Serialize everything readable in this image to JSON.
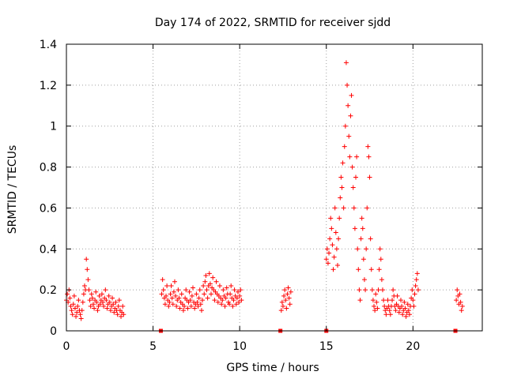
{
  "chart_data": {
    "type": "scatter",
    "title": "Day 174 of 2022, SRMTID for receiver sjdd",
    "xlabel": "GPS time / hours",
    "ylabel": "SRMTID / TECUs",
    "xlim": [
      0,
      24
    ],
    "ylim": [
      0,
      1.4
    ],
    "x_ticks": [
      0,
      5,
      10,
      15,
      20
    ],
    "x_tick_labels": [
      "0",
      "5",
      "10",
      "15",
      "20"
    ],
    "y_ticks": [
      0,
      0.2,
      0.4,
      0.6,
      0.8,
      1.0,
      1.2,
      1.4
    ],
    "y_tick_labels": [
      "0",
      "0.2",
      "0.4",
      "0.6",
      "0.8",
      "1",
      "1.2",
      "1.4"
    ],
    "grid": true,
    "legend": "none",
    "marker_color": "#ff0000",
    "series": [
      {
        "name": "SRMTID",
        "marker": "plus",
        "points": [
          [
            0.0,
            0.15
          ],
          [
            0.05,
            0.18
          ],
          [
            0.1,
            0.14
          ],
          [
            0.15,
            0.2
          ],
          [
            0.2,
            0.16
          ],
          [
            0.25,
            0.12
          ],
          [
            0.3,
            0.1
          ],
          [
            0.35,
            0.08
          ],
          [
            0.4,
            0.13
          ],
          [
            0.45,
            0.17
          ],
          [
            0.5,
            0.11
          ],
          [
            0.55,
            0.07
          ],
          [
            0.6,
            0.09
          ],
          [
            0.65,
            0.12
          ],
          [
            0.7,
            0.15
          ],
          [
            0.75,
            0.1
          ],
          [
            0.8,
            0.08
          ],
          [
            0.85,
            0.06
          ],
          [
            0.9,
            0.1
          ],
          [
            0.95,
            0.14
          ],
          [
            1.0,
            0.18
          ],
          [
            1.05,
            0.22
          ],
          [
            1.1,
            0.2
          ],
          [
            1.15,
            0.35
          ],
          [
            1.2,
            0.3
          ],
          [
            1.25,
            0.25
          ],
          [
            1.3,
            0.2
          ],
          [
            1.35,
            0.15
          ],
          [
            1.4,
            0.12
          ],
          [
            1.45,
            0.18
          ],
          [
            1.5,
            0.16
          ],
          [
            1.55,
            0.13
          ],
          [
            1.6,
            0.11
          ],
          [
            1.65,
            0.15
          ],
          [
            1.7,
            0.19
          ],
          [
            1.75,
            0.14
          ],
          [
            1.8,
            0.1
          ],
          [
            1.85,
            0.12
          ],
          [
            1.9,
            0.17
          ],
          [
            1.95,
            0.13
          ],
          [
            2.0,
            0.15
          ],
          [
            2.05,
            0.18
          ],
          [
            2.1,
            0.14
          ],
          [
            2.15,
            0.12
          ],
          [
            2.2,
            0.16
          ],
          [
            2.25,
            0.2
          ],
          [
            2.3,
            0.15
          ],
          [
            2.35,
            0.11
          ],
          [
            2.4,
            0.13
          ],
          [
            2.45,
            0.17
          ],
          [
            2.5,
            0.14
          ],
          [
            2.55,
            0.1
          ],
          [
            2.6,
            0.12
          ],
          [
            2.65,
            0.16
          ],
          [
            2.7,
            0.13
          ],
          [
            2.75,
            0.09
          ],
          [
            2.8,
            0.11
          ],
          [
            2.85,
            0.14
          ],
          [
            2.9,
            0.1
          ],
          [
            2.95,
            0.08
          ],
          [
            3.0,
            0.12
          ],
          [
            3.05,
            0.15
          ],
          [
            3.1,
            0.1
          ],
          [
            3.15,
            0.07
          ],
          [
            3.2,
            0.09
          ],
          [
            3.25,
            0.12
          ],
          [
            3.3,
            0.08
          ],
          [
            5.5,
            0.18
          ],
          [
            5.55,
            0.25
          ],
          [
            5.6,
            0.2
          ],
          [
            5.65,
            0.16
          ],
          [
            5.7,
            0.13
          ],
          [
            5.75,
            0.17
          ],
          [
            5.8,
            0.22
          ],
          [
            5.85,
            0.15
          ],
          [
            5.9,
            0.12
          ],
          [
            5.95,
            0.14
          ],
          [
            6.0,
            0.18
          ],
          [
            6.05,
            0.22
          ],
          [
            6.1,
            0.16
          ],
          [
            6.15,
            0.13
          ],
          [
            6.2,
            0.19
          ],
          [
            6.25,
            0.24
          ],
          [
            6.3,
            0.17
          ],
          [
            6.35,
            0.12
          ],
          [
            6.4,
            0.15
          ],
          [
            6.45,
            0.2
          ],
          [
            6.5,
            0.16
          ],
          [
            6.55,
            0.11
          ],
          [
            6.6,
            0.14
          ],
          [
            6.65,
            0.18
          ],
          [
            6.7,
            0.13
          ],
          [
            6.75,
            0.1
          ],
          [
            6.8,
            0.12
          ],
          [
            6.85,
            0.16
          ],
          [
            6.9,
            0.2
          ],
          [
            6.95,
            0.15
          ],
          [
            7.0,
            0.11
          ],
          [
            7.05,
            0.14
          ],
          [
            7.1,
            0.19
          ],
          [
            7.15,
            0.15
          ],
          [
            7.2,
            0.12
          ],
          [
            7.25,
            0.17
          ],
          [
            7.3,
            0.21
          ],
          [
            7.35,
            0.14
          ],
          [
            7.4,
            0.11
          ],
          [
            7.45,
            0.13
          ],
          [
            7.5,
            0.18
          ],
          [
            7.55,
            0.14
          ],
          [
            7.6,
            0.12
          ],
          [
            7.65,
            0.16
          ],
          [
            7.7,
            0.2
          ],
          [
            7.75,
            0.13
          ],
          [
            7.8,
            0.1
          ],
          [
            7.85,
            0.15
          ],
          [
            7.9,
            0.22
          ],
          [
            7.95,
            0.18
          ],
          [
            8.0,
            0.24
          ],
          [
            8.05,
            0.27
          ],
          [
            8.1,
            0.2
          ],
          [
            8.15,
            0.16
          ],
          [
            8.2,
            0.22
          ],
          [
            8.25,
            0.28
          ],
          [
            8.3,
            0.23
          ],
          [
            8.35,
            0.18
          ],
          [
            8.4,
            0.21
          ],
          [
            8.45,
            0.26
          ],
          [
            8.5,
            0.2
          ],
          [
            8.55,
            0.15
          ],
          [
            8.6,
            0.19
          ],
          [
            8.65,
            0.24
          ],
          [
            8.7,
            0.18
          ],
          [
            8.75,
            0.14
          ],
          [
            8.8,
            0.17
          ],
          [
            8.85,
            0.22
          ],
          [
            8.9,
            0.16
          ],
          [
            8.95,
            0.13
          ],
          [
            9.0,
            0.15
          ],
          [
            9.05,
            0.2
          ],
          [
            9.1,
            0.17
          ],
          [
            9.15,
            0.12
          ],
          [
            9.2,
            0.16
          ],
          [
            9.25,
            0.21
          ],
          [
            9.3,
            0.18
          ],
          [
            9.35,
            0.14
          ],
          [
            9.4,
            0.13
          ],
          [
            9.45,
            0.18
          ],
          [
            9.5,
            0.22
          ],
          [
            9.55,
            0.16
          ],
          [
            9.6,
            0.12
          ],
          [
            9.65,
            0.15
          ],
          [
            9.7,
            0.2
          ],
          [
            9.75,
            0.17
          ],
          [
            9.8,
            0.13
          ],
          [
            9.85,
            0.16
          ],
          [
            9.9,
            0.19
          ],
          [
            9.95,
            0.14
          ],
          [
            10.0,
            0.17
          ],
          [
            10.05,
            0.2
          ],
          [
            10.1,
            0.15
          ],
          [
            12.4,
            0.1
          ],
          [
            12.45,
            0.14
          ],
          [
            12.5,
            0.12
          ],
          [
            12.55,
            0.17
          ],
          [
            12.6,
            0.2
          ],
          [
            12.65,
            0.15
          ],
          [
            12.7,
            0.11
          ],
          [
            12.75,
            0.18
          ],
          [
            12.8,
            0.21
          ],
          [
            12.85,
            0.16
          ],
          [
            12.9,
            0.13
          ],
          [
            12.95,
            0.19
          ],
          [
            15.0,
            0.35
          ],
          [
            15.05,
            0.4
          ],
          [
            15.1,
            0.33
          ],
          [
            15.15,
            0.38
          ],
          [
            15.2,
            0.45
          ],
          [
            15.25,
            0.55
          ],
          [
            15.3,
            0.5
          ],
          [
            15.35,
            0.42
          ],
          [
            15.4,
            0.3
          ],
          [
            15.45,
            0.36
          ],
          [
            15.5,
            0.6
          ],
          [
            15.55,
            0.48
          ],
          [
            15.6,
            0.4
          ],
          [
            15.65,
            0.32
          ],
          [
            15.7,
            0.45
          ],
          [
            15.75,
            0.55
          ],
          [
            15.8,
            0.65
          ],
          [
            15.85,
            0.75
          ],
          [
            15.9,
            0.7
          ],
          [
            15.95,
            0.82
          ],
          [
            16.0,
            0.6
          ],
          [
            16.05,
            0.9
          ],
          [
            16.1,
            1.0
          ],
          [
            16.15,
            1.31
          ],
          [
            16.2,
            1.2
          ],
          [
            16.25,
            1.1
          ],
          [
            16.3,
            0.95
          ],
          [
            16.35,
            0.85
          ],
          [
            16.4,
            1.05
          ],
          [
            16.45,
            1.15
          ],
          [
            16.5,
            0.8
          ],
          [
            16.55,
            0.7
          ],
          [
            16.6,
            0.6
          ],
          [
            16.65,
            0.5
          ],
          [
            16.7,
            0.75
          ],
          [
            16.75,
            0.85
          ],
          [
            16.8,
            0.4
          ],
          [
            16.85,
            0.3
          ],
          [
            16.9,
            0.2
          ],
          [
            16.95,
            0.15
          ],
          [
            17.0,
            0.45
          ],
          [
            17.05,
            0.55
          ],
          [
            17.1,
            0.5
          ],
          [
            17.15,
            0.35
          ],
          [
            17.2,
            0.25
          ],
          [
            17.25,
            0.2
          ],
          [
            17.3,
            0.4
          ],
          [
            17.35,
            0.6
          ],
          [
            17.4,
            0.9
          ],
          [
            17.45,
            0.85
          ],
          [
            17.5,
            0.75
          ],
          [
            17.55,
            0.45
          ],
          [
            17.6,
            0.3
          ],
          [
            17.65,
            0.2
          ],
          [
            17.7,
            0.15
          ],
          [
            17.75,
            0.12
          ],
          [
            17.8,
            0.1
          ],
          [
            17.85,
            0.18
          ],
          [
            17.9,
            0.14
          ],
          [
            17.95,
            0.11
          ],
          [
            18.0,
            0.2
          ],
          [
            18.05,
            0.3
          ],
          [
            18.1,
            0.4
          ],
          [
            18.15,
            0.35
          ],
          [
            18.2,
            0.25
          ],
          [
            18.25,
            0.2
          ],
          [
            18.3,
            0.15
          ],
          [
            18.35,
            0.12
          ],
          [
            18.4,
            0.1
          ],
          [
            18.45,
            0.08
          ],
          [
            18.5,
            0.11
          ],
          [
            18.55,
            0.15
          ],
          [
            18.6,
            0.12
          ],
          [
            18.65,
            0.1
          ],
          [
            18.7,
            0.08
          ],
          [
            18.75,
            0.12
          ],
          [
            18.8,
            0.15
          ],
          [
            18.85,
            0.2
          ],
          [
            18.9,
            0.17
          ],
          [
            18.95,
            0.12
          ],
          [
            19.0,
            0.1
          ],
          [
            19.05,
            0.13
          ],
          [
            19.1,
            0.17
          ],
          [
            19.15,
            0.12
          ],
          [
            19.2,
            0.09
          ],
          [
            19.25,
            0.11
          ],
          [
            19.3,
            0.15
          ],
          [
            19.35,
            0.12
          ],
          [
            19.4,
            0.08
          ],
          [
            19.45,
            0.1
          ],
          [
            19.5,
            0.14
          ],
          [
            19.55,
            0.11
          ],
          [
            19.6,
            0.07
          ],
          [
            19.65,
            0.09
          ],
          [
            19.7,
            0.13
          ],
          [
            19.75,
            0.1
          ],
          [
            19.8,
            0.08
          ],
          [
            19.85,
            0.12
          ],
          [
            19.9,
            0.16
          ],
          [
            19.95,
            0.2
          ],
          [
            20.0,
            0.15
          ],
          [
            20.05,
            0.12
          ],
          [
            20.1,
            0.18
          ],
          [
            20.15,
            0.22
          ],
          [
            20.2,
            0.25
          ],
          [
            20.25,
            0.28
          ],
          [
            20.3,
            0.2
          ],
          [
            22.5,
            0.15
          ],
          [
            22.55,
            0.2
          ],
          [
            22.6,
            0.17
          ],
          [
            22.65,
            0.13
          ],
          [
            22.7,
            0.18
          ],
          [
            22.75,
            0.14
          ],
          [
            22.8,
            0.1
          ],
          [
            22.85,
            0.12
          ]
        ]
      },
      {
        "name": "gaps",
        "marker": "square",
        "points": [
          [
            5.45,
            0.0
          ],
          [
            12.35,
            0.0
          ],
          [
            15.0,
            0.0
          ],
          [
            22.45,
            0.0
          ]
        ]
      }
    ]
  }
}
